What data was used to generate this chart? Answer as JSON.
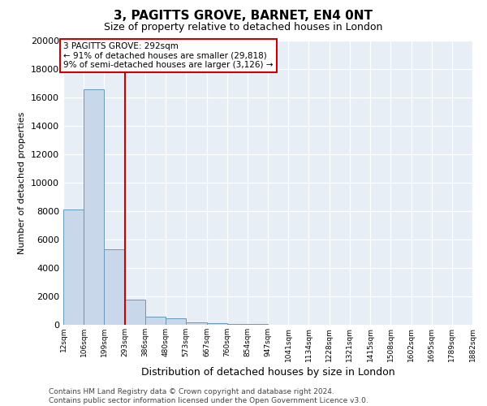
{
  "title": "3, PAGITTS GROVE, BARNET, EN4 0NT",
  "subtitle": "Size of property relative to detached houses in London",
  "xlabel": "Distribution of detached houses by size in London",
  "ylabel": "Number of detached properties",
  "bar_color": "#c8d8ea",
  "bar_edge_color": "#6699bb",
  "background_color": "#e8eef5",
  "property_line_x": 293,
  "property_line_color": "#cc0000",
  "annotation_box_color": "#cc0000",
  "bin_edges": [
    12,
    106,
    199,
    293,
    386,
    480,
    573,
    667,
    760,
    854,
    947,
    1041,
    1134,
    1228,
    1321,
    1415,
    1508,
    1602,
    1695,
    1789,
    1882
  ],
  "bin_labels": [
    "12sqm",
    "106sqm",
    "199sqm",
    "293sqm",
    "386sqm",
    "480sqm",
    "573sqm",
    "667sqm",
    "760sqm",
    "854sqm",
    "947sqm",
    "1041sqm",
    "1134sqm",
    "1228sqm",
    "1321sqm",
    "1415sqm",
    "1508sqm",
    "1602sqm",
    "1695sqm",
    "1789sqm",
    "1882sqm"
  ],
  "values": [
    8100,
    16600,
    5300,
    1750,
    550,
    430,
    190,
    125,
    80,
    40,
    0,
    0,
    0,
    0,
    0,
    0,
    0,
    0,
    0,
    0
  ],
  "ylim": [
    0,
    20000
  ],
  "yticks": [
    0,
    2000,
    4000,
    6000,
    8000,
    10000,
    12000,
    14000,
    16000,
    18000,
    20000
  ],
  "annotation_line1": "3 PAGITTS GROVE: 292sqm",
  "annotation_line2": "← 91% of detached houses are smaller (29,818)",
  "annotation_line3": "9% of semi-detached houses are larger (3,126) →",
  "footnote_line1": "Contains HM Land Registry data © Crown copyright and database right 2024.",
  "footnote_line2": "Contains public sector information licensed under the Open Government Licence v3.0.",
  "title_fontsize": 11,
  "subtitle_fontsize": 9,
  "ylabel_fontsize": 8,
  "xlabel_fontsize": 9,
  "ytick_fontsize": 8,
  "xtick_fontsize": 6.5,
  "annot_fontsize": 7.5,
  "footnote_fontsize": 6.5
}
